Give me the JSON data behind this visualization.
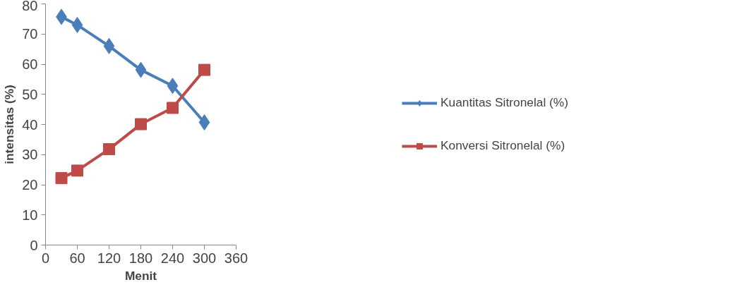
{
  "chart_data": {
    "type": "line",
    "xlabel": "Menit",
    "ylabel": "intensitas (%)",
    "x": [
      30,
      60,
      120,
      180,
      240,
      300
    ],
    "series": [
      {
        "name": "Kuantitas Sitronelal (%)",
        "color": "#4a7ebb",
        "marker": "diamond",
        "values": [
          75.7,
          73.0,
          66.0,
          58.1,
          52.8,
          40.7
        ]
      },
      {
        "name": "Konversi Sitronelal (%)",
        "color": "#be4b48",
        "marker": "square",
        "values": [
          22.2,
          24.7,
          31.8,
          40.1,
          45.5,
          58.1
        ]
      }
    ],
    "xlim": [
      0,
      360
    ],
    "xticks": [
      0,
      60,
      120,
      180,
      240,
      300,
      360
    ],
    "ylim": [
      0,
      80
    ],
    "yticks": [
      0,
      10,
      20,
      30,
      40,
      50,
      60,
      70,
      80
    ],
    "grid": false,
    "legend": "right",
    "line_style": "solid"
  }
}
